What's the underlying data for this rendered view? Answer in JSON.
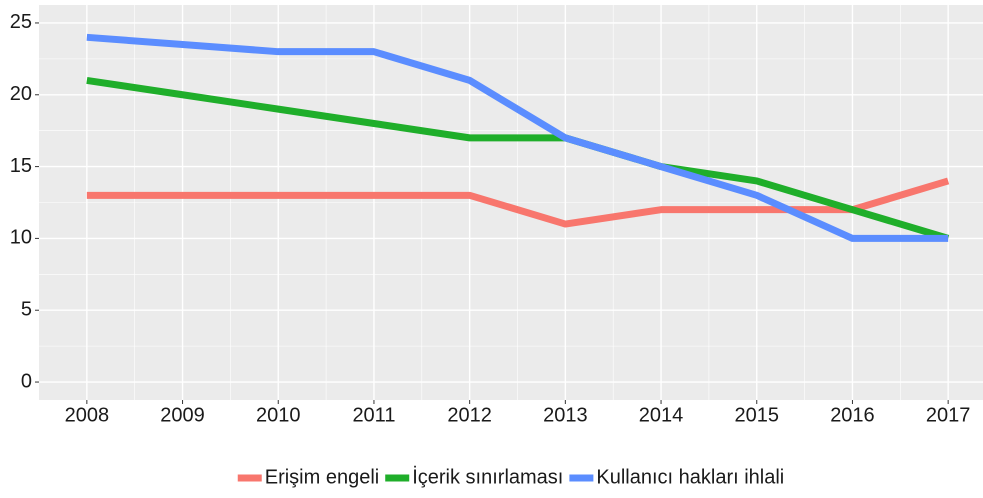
{
  "chart_data": {
    "type": "line",
    "x": [
      2008,
      2009,
      2010,
      2011,
      2012,
      2013,
      2014,
      2015,
      2016,
      2017
    ],
    "series": [
      {
        "name": "Erişim engeli",
        "color": "#f8766d",
        "values": [
          13,
          13,
          13,
          13,
          13,
          11,
          12,
          12,
          12,
          14
        ]
      },
      {
        "name": "İçerik sınırlaması",
        "color": "#1fae2a",
        "values": [
          21,
          20,
          19,
          18,
          17,
          17,
          15,
          14,
          12,
          10
        ]
      },
      {
        "name": "Kullanıcı hakları ihlali",
        "color": "#5b8dff",
        "values": [
          24,
          23.5,
          23,
          23,
          21,
          17,
          15,
          13,
          10,
          10
        ]
      }
    ],
    "xlim": [
      2007.5,
      2017.5
    ],
    "xticks": [
      2008,
      2009,
      2010,
      2011,
      2012,
      2013,
      2014,
      2015,
      2016,
      2017
    ],
    "ylim": [
      -1.25,
      26.25
    ],
    "yticks": [
      0,
      5,
      10,
      15,
      20,
      25
    ],
    "grid": true,
    "legend": "bottom"
  }
}
